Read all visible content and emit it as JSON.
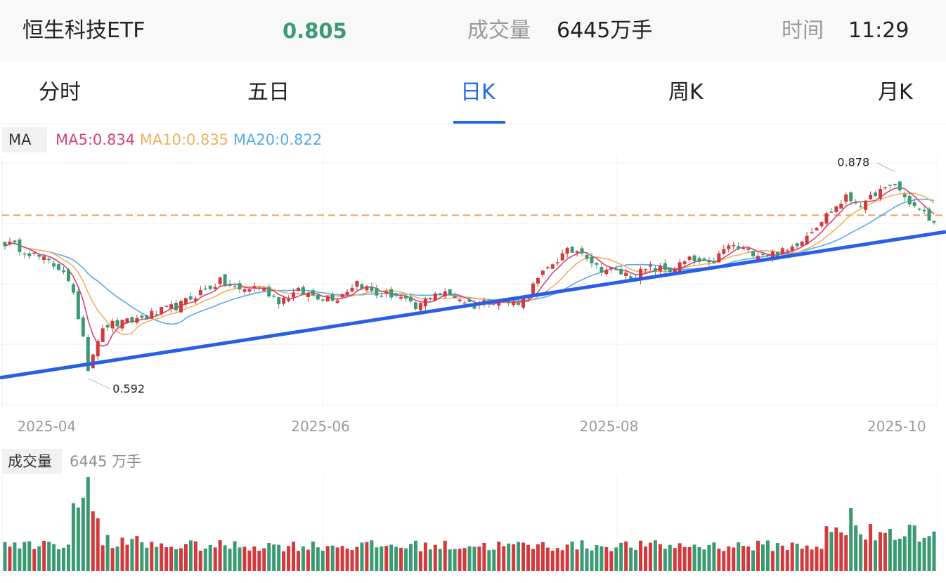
{
  "header": {
    "name": "恒生科技ETF",
    "price": "0.805",
    "volume_label": "成交量",
    "volume": "6445万手",
    "time_label": "时间",
    "time": "11:29"
  },
  "tabs": [
    {
      "label": "分时"
    },
    {
      "label": "五日"
    },
    {
      "label": "日K"
    },
    {
      "label": "周K"
    },
    {
      "label": "月K"
    }
  ],
  "active_tab": "日K",
  "ma_panel": {
    "tag": "MA",
    "ma5": "MA5:0.834",
    "ma10": "MA10:0.835",
    "ma20": "MA20:0.822"
  },
  "volume_panel": {
    "tag": "成交量",
    "value": "6445 万手"
  },
  "colors": {
    "up": "#d23a3e",
    "down": "#3a9b72",
    "ma5": "#d6427a",
    "ma10": "#f0b061",
    "ma20": "#5aa8ec",
    "trendline": "#2a5ee6",
    "dashed_level": "#f0a050",
    "active_tab": "#2469e6"
  },
  "chart_data": {
    "type": "candlestick",
    "x_ticks": [
      "2025-04",
      "2025-06",
      "2025-08",
      "2025-10"
    ],
    "x_tick_index": [
      10,
      66,
      125,
      184
    ],
    "y_range": [
      0.55,
      0.9
    ],
    "annotations": [
      {
        "label": "0.878",
        "index": 182,
        "value": 0.878
      },
      {
        "label": "0.592",
        "index": 17,
        "value": 0.592
      }
    ],
    "dashed_level": 0.818,
    "trendline": [
      {
        "index": 0,
        "value": 0.594
      },
      {
        "index": 191,
        "value": 0.795
      }
    ],
    "ma_last": {
      "MA5": 0.834,
      "MA10": 0.835,
      "MA20": 0.822
    },
    "last_volume": "6445万手",
    "anchors": [
      [
        0,
        0.78
      ],
      [
        4,
        0.77
      ],
      [
        8,
        0.756
      ],
      [
        12,
        0.742
      ],
      [
        14,
        0.705
      ],
      [
        16,
        0.652
      ],
      [
        17,
        0.608
      ],
      [
        19,
        0.648
      ],
      [
        21,
        0.666
      ],
      [
        24,
        0.668
      ],
      [
        28,
        0.676
      ],
      [
        32,
        0.685
      ],
      [
        36,
        0.694
      ],
      [
        40,
        0.712
      ],
      [
        44,
        0.726
      ],
      [
        48,
        0.714
      ],
      [
        52,
        0.72
      ],
      [
        56,
        0.7
      ],
      [
        60,
        0.712
      ],
      [
        64,
        0.706
      ],
      [
        68,
        0.704
      ],
      [
        72,
        0.726
      ],
      [
        76,
        0.708
      ],
      [
        80,
        0.708
      ],
      [
        84,
        0.688
      ],
      [
        88,
        0.712
      ],
      [
        92,
        0.706
      ],
      [
        96,
        0.693
      ],
      [
        100,
        0.702
      ],
      [
        104,
        0.696
      ],
      [
        106,
        0.702
      ],
      [
        108,
        0.72
      ],
      [
        112,
        0.752
      ],
      [
        115,
        0.767
      ],
      [
        118,
        0.77
      ],
      [
        121,
        0.746
      ],
      [
        124,
        0.742
      ],
      [
        128,
        0.734
      ],
      [
        132,
        0.744
      ],
      [
        136,
        0.742
      ],
      [
        140,
        0.756
      ],
      [
        144,
        0.748
      ],
      [
        148,
        0.776
      ],
      [
        152,
        0.768
      ],
      [
        156,
        0.764
      ],
      [
        160,
        0.768
      ],
      [
        164,
        0.792
      ],
      [
        168,
        0.818
      ],
      [
        172,
        0.842
      ],
      [
        176,
        0.832
      ],
      [
        178,
        0.85
      ],
      [
        180,
        0.852
      ],
      [
        182,
        0.862
      ],
      [
        184,
        0.842
      ],
      [
        186,
        0.83
      ],
      [
        188,
        0.82
      ],
      [
        190,
        0.805
      ]
    ],
    "candle_count": 191
  }
}
